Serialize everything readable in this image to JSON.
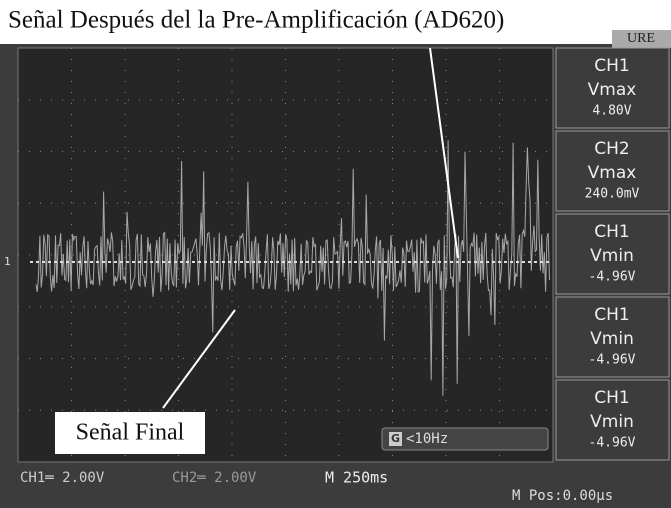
{
  "header": {
    "title": "Señal Después del la Pre-Amplificación (AD620)",
    "tab": "URE"
  },
  "measures": [
    {
      "channel": "CH1",
      "label": "Vmax",
      "value": "4.80V"
    },
    {
      "channel": "CH2",
      "label": "Vmax",
      "value": "240.0mV"
    },
    {
      "channel": "CH1",
      "label": "Vmin",
      "value": "-4.96V"
    },
    {
      "channel": "CH1",
      "label": "Vmin",
      "value": "-4.96V"
    },
    {
      "channel": "CH1",
      "label": "Vmin",
      "value": "-4.96V"
    }
  ],
  "status": {
    "ch1": "CH1═ 2.00V",
    "ch2": "CH2═ 2.00V",
    "timebase": "M 250ms",
    "position": "M Pos:0.00µs"
  },
  "trigger": {
    "icon": "G",
    "label": "<10Hz"
  },
  "annotation": "Señal Final"
}
